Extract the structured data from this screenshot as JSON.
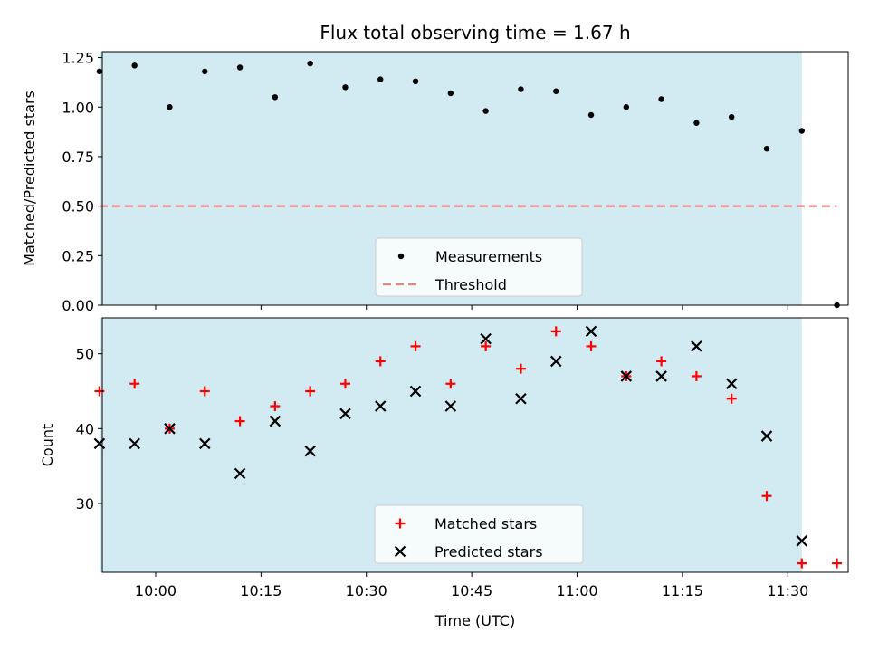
{
  "chart_data": {
    "title": "Flux total observing time = 1.67 h",
    "xlabel": "Time (UTC)",
    "x_ticks": [
      "10:00",
      "10:15",
      "10:30",
      "10:45",
      "11:00",
      "11:15",
      "11:30"
    ],
    "times": [
      "09:52",
      "09:57",
      "10:02",
      "10:07",
      "10:12",
      "10:17",
      "10:22",
      "10:27",
      "10:32",
      "10:37",
      "10:42",
      "10:47",
      "10:52",
      "10:57",
      "11:02",
      "11:07",
      "11:12",
      "11:17",
      "11:22",
      "11:27",
      "11:32",
      "11:37"
    ],
    "observing_window": [
      "09:52",
      "11:32"
    ],
    "window_color": "#add8e6",
    "panels": [
      {
        "type": "scatter",
        "ylabel": "Matched/Predicted stars",
        "ylim": [
          0,
          1.28
        ],
        "y_ticks": [
          "0.00",
          "0.25",
          "0.50",
          "0.75",
          "1.00",
          "1.25"
        ],
        "legend_position": "bottom-center",
        "series": [
          {
            "name": "Measurements",
            "marker": "dot",
            "color": "#000000",
            "values": [
              1.18,
              1.21,
              1.0,
              1.18,
              1.2,
              1.05,
              1.22,
              1.1,
              1.14,
              1.13,
              1.07,
              0.98,
              1.09,
              1.08,
              0.96,
              1.0,
              1.04,
              0.92,
              0.95,
              0.79,
              0.88,
              0.0
            ]
          },
          {
            "name": "Threshold",
            "marker": "dashed-line",
            "color": "#f08080",
            "values": [
              0.5,
              0.5
            ]
          }
        ]
      },
      {
        "type": "scatter",
        "ylabel": "Count",
        "ylim": [
          20.8,
          54.8
        ],
        "y_ticks": [
          "30",
          "40",
          "50"
        ],
        "legend_position": "bottom-center",
        "series": [
          {
            "name": "Matched stars",
            "marker": "plus",
            "color": "#ff0000",
            "values": [
              45,
              46,
              40,
              45,
              41,
              43,
              45,
              46,
              49,
              51,
              46,
              51,
              48,
              53,
              51,
              47,
              49,
              47,
              44,
              31,
              22,
              22
            ]
          },
          {
            "name": "Predicted stars",
            "marker": "x",
            "color": "#000000",
            "values": [
              38,
              38,
              40,
              38,
              34,
              41,
              37,
              42,
              43,
              45,
              43,
              52,
              44,
              49,
              53,
              47,
              47,
              51,
              46,
              39,
              25,
              null
            ]
          }
        ]
      }
    ]
  }
}
